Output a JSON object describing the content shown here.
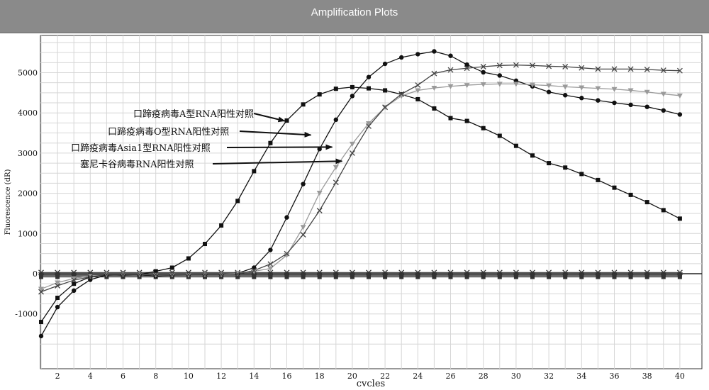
{
  "window": {
    "title": "Amplification Plots"
  },
  "chart_data": {
    "type": "line",
    "title": "Amplification Plots",
    "xlabel": "cycles",
    "ylabel": "Fluorescence (dR)",
    "xlim": [
      1,
      40
    ],
    "ylim": [
      -1800,
      6200
    ],
    "x_ticks": [
      2,
      4,
      6,
      8,
      10,
      12,
      14,
      16,
      18,
      20,
      22,
      24,
      26,
      28,
      30,
      32,
      34,
      36,
      38,
      40
    ],
    "y_ticks": [
      -1000,
      0,
      1000,
      2000,
      3000,
      4000,
      5000
    ],
    "grid": true,
    "x": [
      1,
      2,
      3,
      4,
      5,
      6,
      7,
      8,
      9,
      10,
      11,
      12,
      13,
      14,
      15,
      16,
      17,
      18,
      19,
      20,
      21,
      22,
      23,
      24,
      25,
      26,
      27,
      28,
      29,
      30,
      31,
      32,
      33,
      34,
      35,
      36,
      37,
      38,
      39,
      40
    ],
    "series": [
      {
        "marker": "square",
        "color": "#111111",
        "values": [
          -1200,
          -600,
          -250,
          -80,
          -20,
          -30,
          -20,
          60,
          150,
          380,
          740,
          1200,
          1810,
          2550,
          3250,
          3810,
          4210,
          4460,
          4600,
          4640,
          4610,
          4560,
          4460,
          4340,
          4110,
          3870,
          3800,
          3620,
          3430,
          3180,
          2940,
          2750,
          2640,
          2480,
          2330,
          2140,
          1960,
          1780,
          1580,
          1370
        ]
      },
      {
        "marker": "circle",
        "color": "#111111",
        "values": [
          -1550,
          -830,
          -420,
          -150,
          -30,
          -20,
          -20,
          -60,
          -40,
          -20,
          -10,
          -10,
          10,
          150,
          590,
          1400,
          2230,
          3100,
          3830,
          4420,
          4890,
          5220,
          5380,
          5460,
          5530,
          5420,
          5200,
          5010,
          4930,
          4800,
          4660,
          4520,
          4440,
          4370,
          4310,
          4250,
          4200,
          4150,
          4060,
          3960
        ]
      },
      {
        "marker": "triangle-down",
        "color": "#9a9a9a",
        "values": [
          -380,
          -220,
          -120,
          -60,
          -20,
          -20,
          -20,
          -30,
          -30,
          -30,
          -20,
          -20,
          10,
          60,
          130,
          460,
          1160,
          2010,
          2650,
          3230,
          3740,
          4140,
          4420,
          4560,
          4620,
          4660,
          4690,
          4710,
          4720,
          4720,
          4700,
          4680,
          4650,
          4630,
          4610,
          4590,
          4560,
          4520,
          4470,
          4430
        ]
      },
      {
        "marker": "x",
        "color": "#444444",
        "values": [
          -450,
          -300,
          -160,
          -80,
          -20,
          -20,
          -20,
          -20,
          -20,
          -20,
          -20,
          -20,
          -10,
          80,
          240,
          500,
          970,
          1570,
          2270,
          3000,
          3670,
          4140,
          4470,
          4690,
          4980,
          5070,
          5110,
          5150,
          5180,
          5190,
          5180,
          5160,
          5150,
          5120,
          5090,
          5090,
          5090,
          5080,
          5060,
          5050
        ]
      }
    ],
    "baseline_series": [
      {
        "marker": "square",
        "value": -80
      },
      {
        "marker": "circle",
        "value": -50
      },
      {
        "marker": "triangle-down",
        "value": -20
      },
      {
        "marker": "x",
        "value": 30
      }
    ],
    "annotations": [
      {
        "text": "口蹄疫病毒A型RNA阳性对照",
        "x": 16,
        "y": 3800
      },
      {
        "text": "口蹄疫病毒O型RNA阳性对照",
        "x": 17.6,
        "y": 3450
      },
      {
        "text": "口蹄疫病毒Asia1型RNA阳性对照",
        "x": 18.9,
        "y": 3150
      },
      {
        "text": "塞尼卡谷病毒RNA阳性对照",
        "x": 19.5,
        "y": 2800
      }
    ]
  }
}
